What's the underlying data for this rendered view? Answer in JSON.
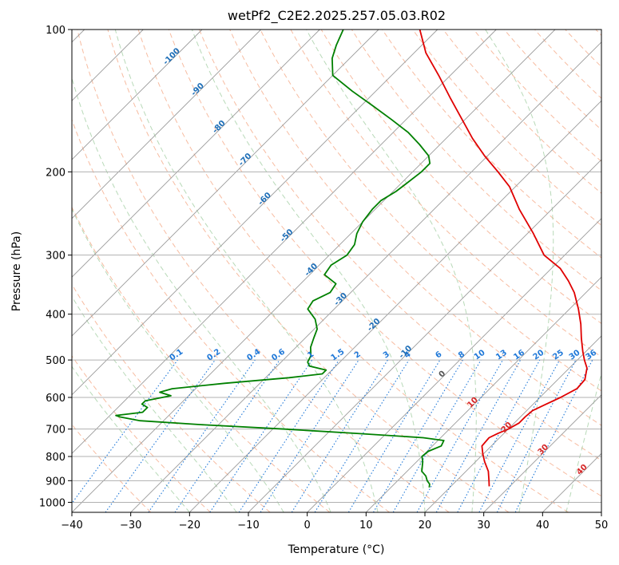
{
  "chart_data": {
    "type": "line",
    "title": "wetPf2_C2E2.2025.257.05.03.R02",
    "xlabel": "Temperature (°C)",
    "ylabel": "Pressure (hPa)",
    "xlim": [
      -40,
      50
    ],
    "ylim": [
      1050,
      100
    ],
    "y_scale": "log",
    "skew": true,
    "grid": true,
    "x_ticks": [
      -40,
      -30,
      -20,
      -10,
      0,
      10,
      20,
      30,
      40,
      50
    ],
    "y_ticks": [
      1000,
      900,
      800,
      700,
      600,
      500,
      400,
      300,
      200,
      100
    ],
    "colors": {
      "temperature": "#e00000",
      "dewpoint": "#008000",
      "isotherm": "#9a9a9a",
      "dry_adiabat": "#f4a582",
      "moist_adiabat": "#92c592",
      "mixing_ratio": "#1f78d8",
      "isotherm_label": "#1f6fb8",
      "warm_isotherm_label": "#d62728"
    },
    "series": [
      {
        "id": "temperature",
        "points": [
          [
            925,
            26.5
          ],
          [
            900,
            25.5
          ],
          [
            860,
            23.8
          ],
          [
            820,
            21.5
          ],
          [
            790,
            19.9
          ],
          [
            760,
            18.4
          ],
          [
            730,
            18.2
          ],
          [
            715,
            19.0
          ],
          [
            700,
            20.0
          ],
          [
            680,
            20.8
          ],
          [
            660,
            20.8
          ],
          [
            640,
            21.0
          ],
          [
            620,
            22.2
          ],
          [
            600,
            23.5
          ],
          [
            575,
            24.8
          ],
          [
            550,
            24.6
          ],
          [
            520,
            23.0
          ],
          [
            500,
            21.2
          ],
          [
            480,
            19.5
          ],
          [
            450,
            17.0
          ],
          [
            420,
            14.5
          ],
          [
            390,
            11.5
          ],
          [
            360,
            8.0
          ],
          [
            340,
            5.0
          ],
          [
            320,
            1.5
          ],
          [
            300,
            -3.5
          ],
          [
            270,
            -9.0
          ],
          [
            240,
            -15.5
          ],
          [
            215,
            -21.0
          ],
          [
            200,
            -25.5
          ],
          [
            185,
            -30.5
          ],
          [
            170,
            -35.5
          ],
          [
            155,
            -40.5
          ],
          [
            140,
            -46.0
          ],
          [
            125,
            -52.0
          ],
          [
            112,
            -58.0
          ],
          [
            100,
            -63.0
          ]
        ]
      },
      {
        "id": "dewpoint",
        "points": [
          [
            930,
            16.5
          ],
          [
            915,
            16.0
          ],
          [
            900,
            15.0
          ],
          [
            880,
            14.0
          ],
          [
            860,
            12.5
          ],
          [
            820,
            11.0
          ],
          [
            800,
            10.0
          ],
          [
            780,
            10.2
          ],
          [
            760,
            11.5
          ],
          [
            740,
            11.0
          ],
          [
            730,
            7.0
          ],
          [
            715,
            -5.0
          ],
          [
            700,
            -18.0
          ],
          [
            685,
            -33.0
          ],
          [
            672,
            -44.0
          ],
          [
            660,
            -48.0
          ],
          [
            655,
            -49.0
          ],
          [
            645,
            -45.0
          ],
          [
            630,
            -45.0
          ],
          [
            620,
            -46.5
          ],
          [
            610,
            -46.5
          ],
          [
            595,
            -43.0
          ],
          [
            585,
            -45.5
          ],
          [
            575,
            -44.0
          ],
          [
            560,
            -36.0
          ],
          [
            545,
            -26.0
          ],
          [
            535,
            -21.0
          ],
          [
            525,
            -21.0
          ],
          [
            515,
            -24.5
          ],
          [
            505,
            -25.5
          ],
          [
            490,
            -26.0
          ],
          [
            470,
            -27.5
          ],
          [
            450,
            -28.5
          ],
          [
            430,
            -29.5
          ],
          [
            410,
            -31.5
          ],
          [
            390,
            -34.5
          ],
          [
            375,
            -35.0
          ],
          [
            360,
            -33.5
          ],
          [
            345,
            -34.0
          ],
          [
            330,
            -37.5
          ],
          [
            315,
            -38.0
          ],
          [
            300,
            -37.0
          ],
          [
            285,
            -37.5
          ],
          [
            270,
            -39.0
          ],
          [
            255,
            -40.0
          ],
          [
            240,
            -40.5
          ],
          [
            230,
            -40.5
          ],
          [
            220,
            -39.5
          ],
          [
            210,
            -39.0
          ],
          [
            200,
            -38.5
          ],
          [
            192,
            -38.5
          ],
          [
            185,
            -40.0
          ],
          [
            175,
            -43.5
          ],
          [
            165,
            -47.5
          ],
          [
            155,
            -52.5
          ],
          [
            145,
            -58.0
          ],
          [
            135,
            -64.0
          ],
          [
            125,
            -70.0
          ],
          [
            115,
            -73.0
          ],
          [
            108,
            -74.5
          ],
          [
            100,
            -76.0
          ]
        ]
      }
    ],
    "isotherm_labels": [
      "-100",
      "-90",
      "-80",
      "-70",
      "-60",
      "-50",
      "-40",
      "-30",
      "-20",
      "-10",
      "0",
      "10",
      "20",
      "30",
      "40"
    ],
    "mixing_ratio_labels": [
      "0.1",
      "0.2",
      "0.4",
      "0.6",
      "1",
      "1.5",
      "2",
      "3",
      "4",
      "6",
      "8",
      "10",
      "13",
      "16",
      "20",
      "25",
      "30",
      "36"
    ]
  }
}
